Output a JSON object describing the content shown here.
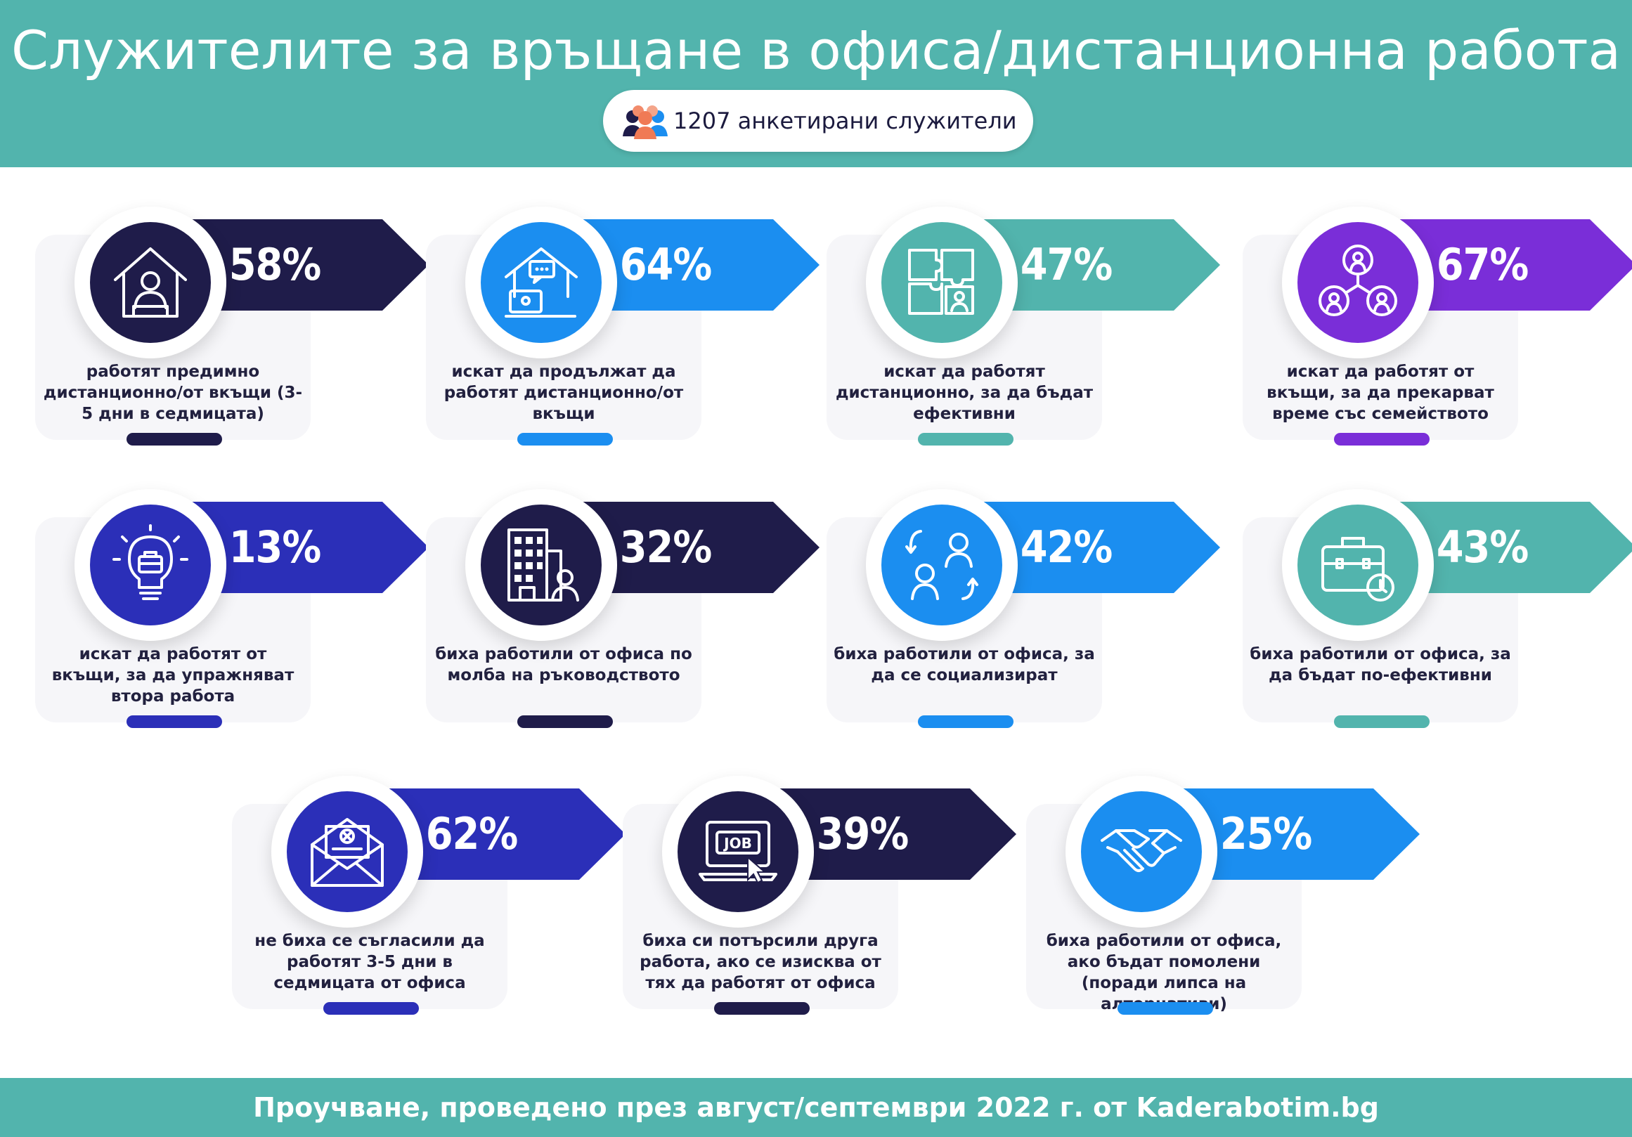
{
  "header": {
    "title": "Служителите за връщане в офиса/дистанционна работа",
    "respondents": "1207 анкетирани служители",
    "respondents_icon": "people-group-icon"
  },
  "colors": {
    "teal": "#52b4ad",
    "navy": "#1f1c4a",
    "blue": "#1b8ef0",
    "purple": "#7a2ed8",
    "indigo": "#2b2fb8"
  },
  "cards": [
    {
      "percent": "58%",
      "label": "работят предимно дистанционно/от вкъщи (3-5 дни в седмицата)",
      "icon": "home-worker-icon",
      "color": "#1f1c4a"
    },
    {
      "percent": "64%",
      "label": "искат да продължат да работят дистанционно/от вкъщи",
      "icon": "home-laptop-chat-icon",
      "color": "#1b8ef0"
    },
    {
      "percent": "47%",
      "label": "искат да работят дистанционно, за да бъдат ефективни",
      "icon": "puzzle-person-icon",
      "color": "#52b4ad"
    },
    {
      "percent": "67%",
      "label": "искат да работят от вкъщи, за да прекарват време със семейството",
      "icon": "family-network-icon",
      "color": "#7a2ed8"
    },
    {
      "percent": "13%",
      "label": "искат да работят от вкъщи, за да упражняват втора работа",
      "icon": "lightbulb-briefcase-icon",
      "color": "#2b2fb8"
    },
    {
      "percent": "32%",
      "label": "биха работили от офиса по молба на ръководството",
      "icon": "office-building-icon",
      "color": "#1f1c4a"
    },
    {
      "percent": "42%",
      "label": "биха работили от офиса, за да се социализират",
      "icon": "people-exchange-icon",
      "color": "#1b8ef0"
    },
    {
      "percent": "43%",
      "label": "биха работили от офиса, за да бъдат по-ефективни",
      "icon": "briefcase-clock-icon",
      "color": "#52b4ad"
    },
    {
      "percent": "62%",
      "label": "не биха се съгласили да работят 3-5 дни в седмицата от офиса",
      "icon": "rejection-letter-icon",
      "color": "#2b2fb8"
    },
    {
      "percent": "39%",
      "label": "биха си потърсили друга работа, ако се изисква от тях да работят от офиса",
      "icon": "job-search-laptop-icon",
      "color": "#1f1c4a"
    },
    {
      "percent": "25%",
      "label": "биха работили от офиса, ако бъдат помолени (поради липса на алтернативи)",
      "icon": "handshake-icon",
      "color": "#1b8ef0"
    }
  ],
  "footer": {
    "text": "Проучване, проведено през август/септември 2022 г. от Kaderabotim.bg"
  }
}
